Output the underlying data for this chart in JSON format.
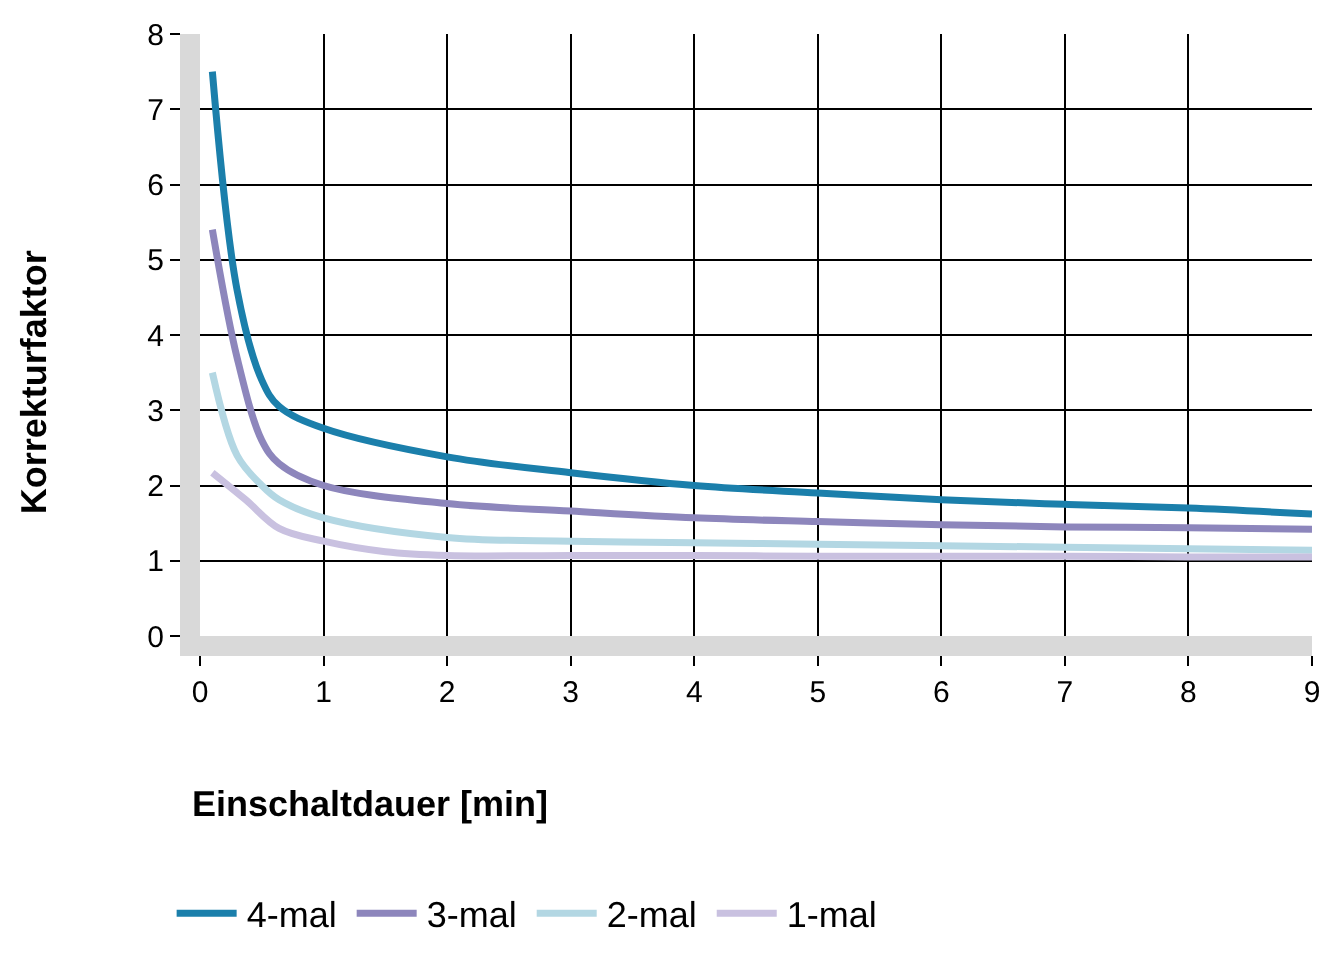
{
  "chart_data": {
    "type": "line",
    "xlabel": "Einschaltdauer [min]",
    "ylabel": "Korrekturfaktor",
    "xlim": [
      0,
      9
    ],
    "ylim": [
      0,
      8
    ],
    "xticks": [
      0,
      1,
      2,
      3,
      4,
      5,
      6,
      7,
      8,
      9
    ],
    "yticks": [
      0,
      1,
      2,
      3,
      4,
      5,
      6,
      7,
      8
    ],
    "grid": true,
    "legend": "bottom",
    "marker": "none",
    "line_style": "solid",
    "series": [
      {
        "name": "4-mal",
        "color": "#1b7fab",
        "x": [
          0.1,
          0.3,
          0.5,
          0.64,
          1,
          2,
          3,
          4,
          5,
          6,
          7,
          8,
          9
        ],
        "values": [
          7.5,
          4.6,
          3.4,
          3.05,
          2.76,
          2.38,
          2.17,
          2.0,
          1.9,
          1.81,
          1.75,
          1.7,
          1.62
        ]
      },
      {
        "name": "3-mal",
        "color": "#8d86bc",
        "x": [
          0.1,
          0.3,
          0.5,
          0.64,
          1,
          2,
          3,
          4,
          5,
          6,
          7,
          8,
          9
        ],
        "values": [
          5.4,
          3.7,
          2.6,
          2.29,
          2.0,
          1.76,
          1.66,
          1.57,
          1.52,
          1.48,
          1.45,
          1.44,
          1.42
        ]
      },
      {
        "name": "2-mal",
        "color": "#b3d7e3",
        "x": [
          0.1,
          0.3,
          0.5,
          0.64,
          1,
          2,
          3,
          4,
          5,
          6,
          7,
          8,
          9
        ],
        "values": [
          3.5,
          2.4,
          2.0,
          1.81,
          1.57,
          1.31,
          1.26,
          1.24,
          1.22,
          1.2,
          1.18,
          1.16,
          1.14
        ]
      },
      {
        "name": "1-mal",
        "color": "#c9c1e0",
        "x": [
          0.1,
          0.37,
          0.64,
          1,
          1.5,
          2,
          3,
          4,
          5,
          6,
          7,
          8,
          9
        ],
        "values": [
          2.17,
          1.81,
          1.43,
          1.26,
          1.12,
          1.07,
          1.07,
          1.07,
          1.06,
          1.06,
          1.06,
          1.05,
          1.05
        ]
      }
    ]
  }
}
